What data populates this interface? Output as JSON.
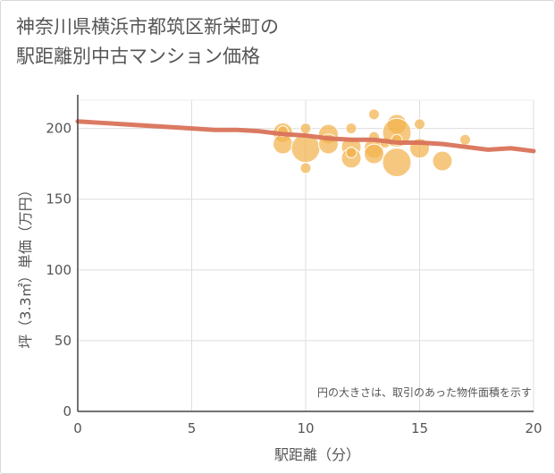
{
  "title_lines": [
    "神奈川県横浜市都筑区新栄町の",
    "駅距離別中古マンション価格"
  ],
  "chart_data": {
    "type": "scatter",
    "xlabel": "駅距離（分）",
    "ylabel": "坪（3.3㎡）単価（万円）",
    "xlim": [
      0,
      20
    ],
    "ylim": [
      0,
      220
    ],
    "xticks": [
      0,
      5,
      10,
      15,
      20
    ],
    "yticks": [
      0,
      50,
      100,
      150,
      200
    ],
    "grid": true,
    "note": "円の大きさは、取引のあった物件面積を示す",
    "colors": {
      "bubble": "#f2b34e",
      "trend": "#d9735a",
      "grid": "#dddddd",
      "axis": "#444444"
    },
    "bubbles": [
      {
        "x": 9,
        "y": 197,
        "size": 2
      },
      {
        "x": 9,
        "y": 189,
        "size": 2
      },
      {
        "x": 9,
        "y": 198,
        "size": 1
      },
      {
        "x": 10,
        "y": 200,
        "size": 1
      },
      {
        "x": 10,
        "y": 186,
        "size": 3
      },
      {
        "x": 10,
        "y": 172,
        "size": 1
      },
      {
        "x": 11,
        "y": 196,
        "size": 2
      },
      {
        "x": 11,
        "y": 189,
        "size": 2
      },
      {
        "x": 12,
        "y": 200,
        "size": 1
      },
      {
        "x": 12,
        "y": 187,
        "size": 2
      },
      {
        "x": 12,
        "y": 179,
        "size": 2
      },
      {
        "x": 12,
        "y": 183,
        "size": 1
      },
      {
        "x": 13,
        "y": 210,
        "size": 1
      },
      {
        "x": 13,
        "y": 194,
        "size": 1
      },
      {
        "x": 13,
        "y": 186,
        "size": 2
      },
      {
        "x": 13,
        "y": 182,
        "size": 2
      },
      {
        "x": 13.5,
        "y": 190,
        "size": 1
      },
      {
        "x": 14,
        "y": 203,
        "size": 2
      },
      {
        "x": 14,
        "y": 197,
        "size": 3
      },
      {
        "x": 14,
        "y": 192,
        "size": 1
      },
      {
        "x": 14,
        "y": 176,
        "size": 3
      },
      {
        "x": 15,
        "y": 203,
        "size": 1
      },
      {
        "x": 15,
        "y": 186,
        "size": 2
      },
      {
        "x": 16,
        "y": 177,
        "size": 2
      },
      {
        "x": 17,
        "y": 192,
        "size": 1
      }
    ],
    "trend": {
      "x": [
        0,
        1,
        2,
        3,
        4,
        5,
        6,
        7,
        8,
        9,
        10,
        11,
        12,
        13,
        14,
        15,
        16,
        17,
        18,
        19,
        20
      ],
      "y": [
        205,
        204,
        203,
        202,
        201,
        200,
        199,
        199,
        198,
        196,
        195,
        193,
        192,
        192,
        190,
        190,
        189,
        187,
        185,
        186,
        184
      ]
    }
  }
}
